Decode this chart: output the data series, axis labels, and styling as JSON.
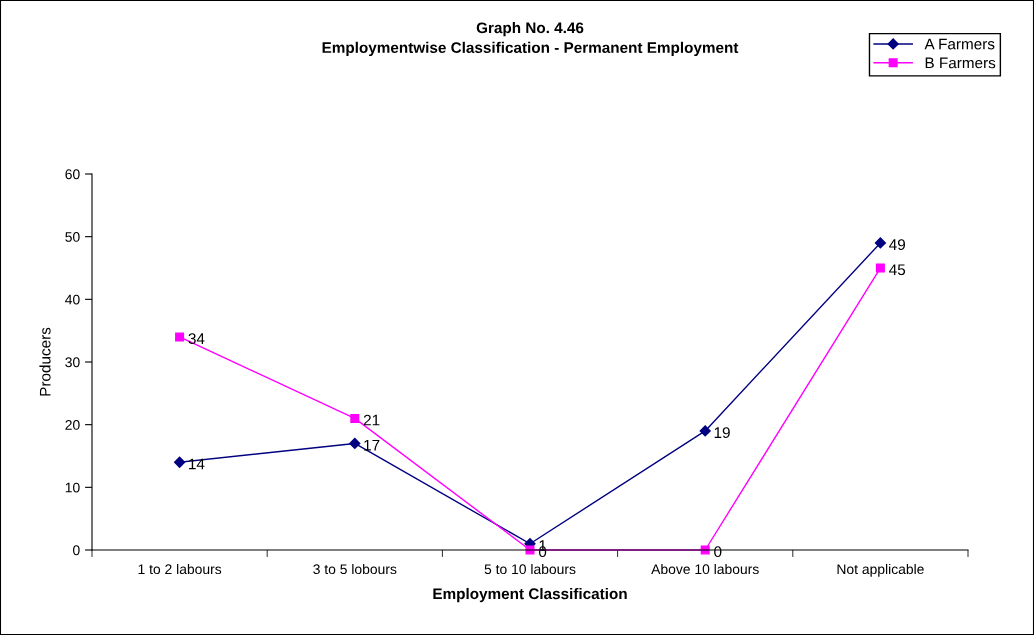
{
  "chart_data": {
    "type": "line",
    "title": "Graph No. 4.46\nEmploymentwise Classification - Permanent Employment",
    "xlabel": "Employment Classification",
    "ylabel": "Producers",
    "categories": [
      "1 to 2 labours",
      "3 to 5 lobours",
      "5 to 10 labours",
      "Above 10 labours",
      "Not applicable"
    ],
    "series": [
      {
        "name": "A Farmers",
        "color": "#000080",
        "marker": "diamond",
        "values": [
          14,
          17,
          1,
          19,
          49
        ]
      },
      {
        "name": "B Farmers",
        "color": "#ff00ff",
        "marker": "square",
        "values": [
          34,
          21,
          0,
          0,
          45
        ]
      }
    ],
    "ylim": [
      0,
      60
    ],
    "yticks": [
      0,
      10,
      20,
      30,
      40,
      50,
      60
    ],
    "data_labels": true,
    "grid": false,
    "legend": "top right",
    "line_style": "solid"
  }
}
